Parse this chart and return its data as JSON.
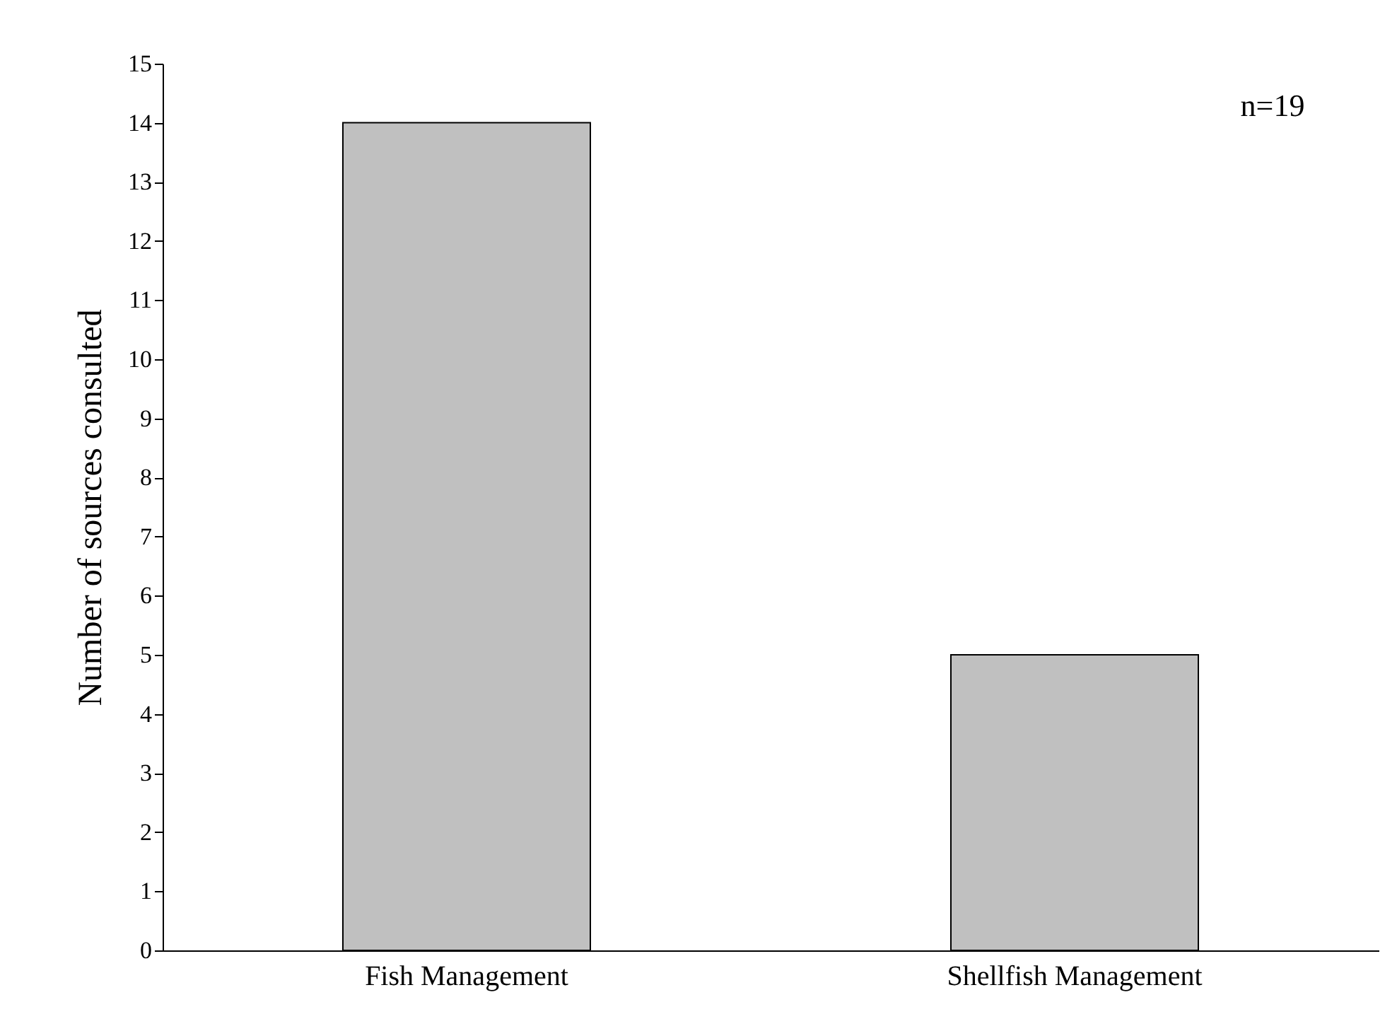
{
  "chart_data": {
    "type": "bar",
    "ylabel": "Number of sources consulted",
    "categories": [
      "Fish Management",
      "Shellfish Management"
    ],
    "values": [
      14,
      5
    ],
    "color": "#c0c0c0",
    "ylim": [
      0,
      15
    ],
    "yticks": [
      0,
      1,
      2,
      3,
      4,
      5,
      6,
      7,
      8,
      9,
      10,
      11,
      12,
      13,
      14,
      15
    ],
    "grid": false,
    "annotations": [
      "n=19"
    ]
  }
}
